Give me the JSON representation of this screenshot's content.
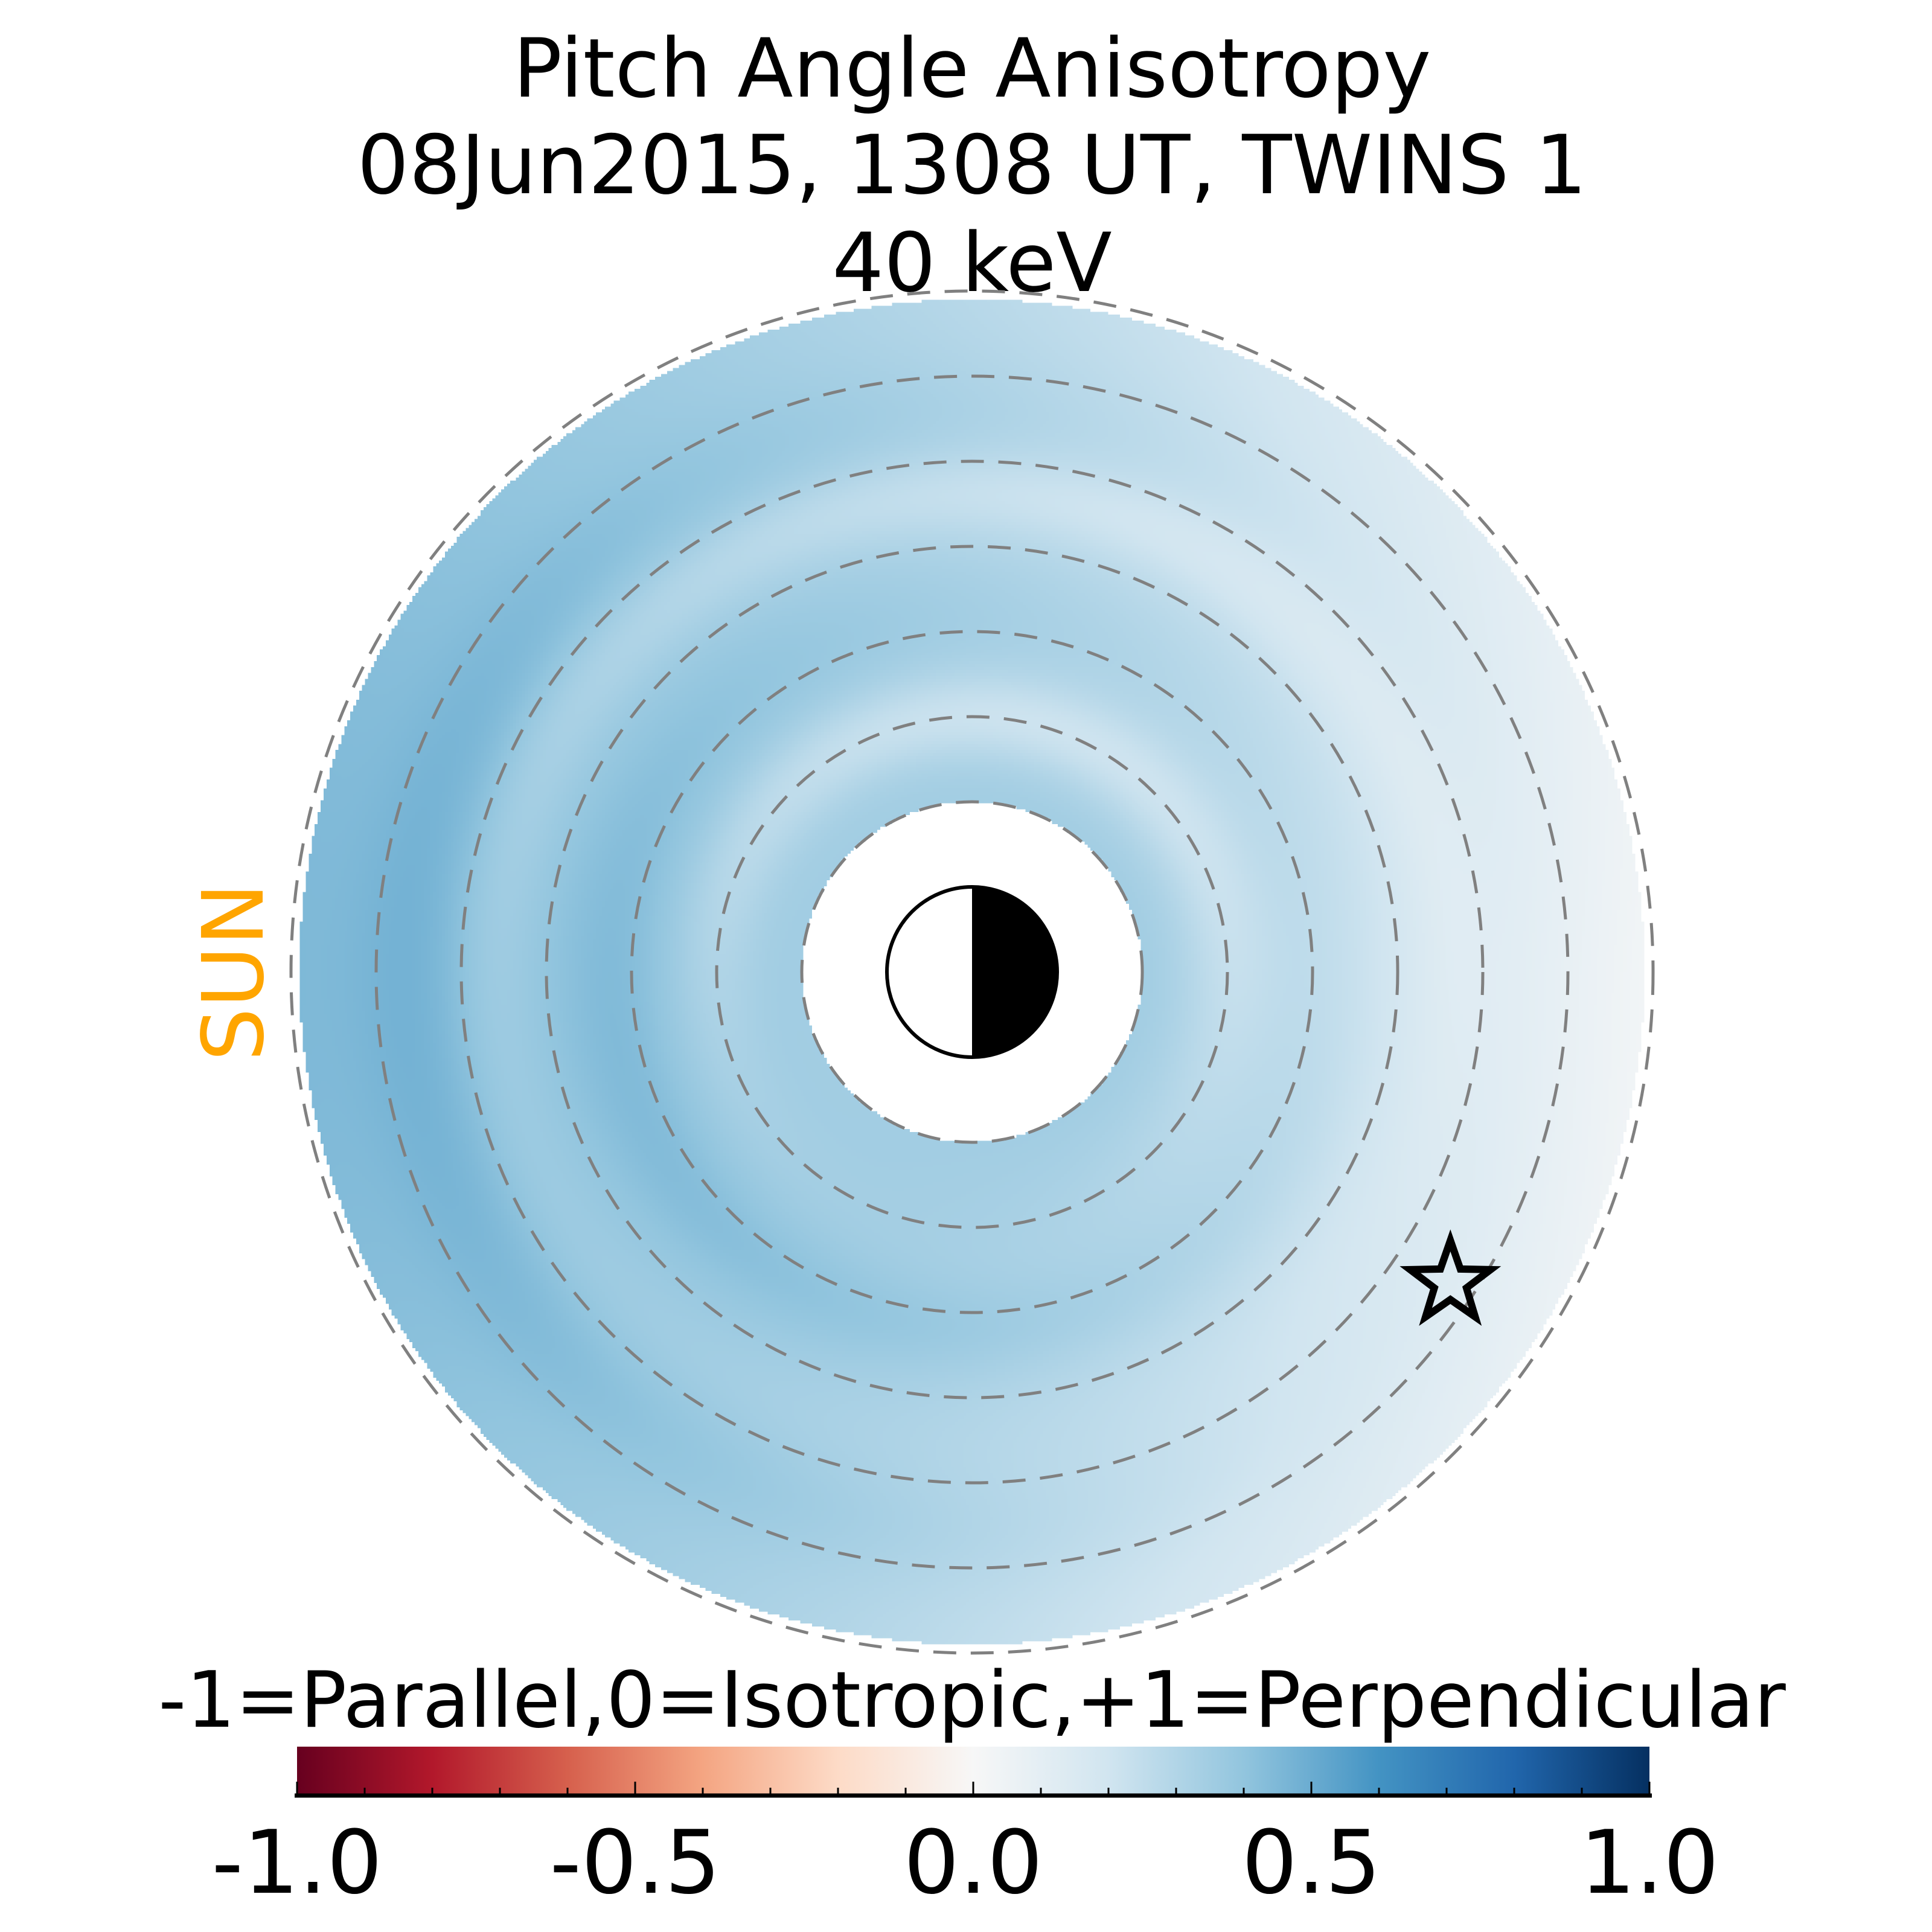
{
  "chart_data": {
    "type": "heatmap",
    "title_lines": [
      "Pitch Angle Anisotropy",
      "08Jun2015, 1308 UT,  TWINS 1",
      "40 keV"
    ],
    "sun_label": "SUN",
    "sun_color": "#FFA500",
    "colorbar": {
      "label": "-1=Parallel,0=Isotropic,+1=Perpendicular",
      "range": [
        -1.0,
        1.0
      ],
      "tick_labels": [
        "-1.0",
        "-0.5",
        "0.0",
        "0.5",
        "1.0"
      ],
      "tick_values": [
        -1.0,
        -0.5,
        0.0,
        0.5,
        1.0
      ],
      "minor_step": 0.1,
      "colormap": "RdBu",
      "stops": [
        "#67001f",
        "#b2182b",
        "#d6604d",
        "#f4a582",
        "#fddbc7",
        "#f7f7f7",
        "#d1e5f0",
        "#92c5de",
        "#4393c3",
        "#2166ac",
        "#053061"
      ]
    },
    "radial_circles_re": [
      2,
      3,
      4,
      5,
      6,
      7,
      8
    ],
    "data_range_re": [
      2,
      8
    ],
    "earth_radius_re": 1,
    "grid_color": "#808080",
    "anisotropy_summary": {
      "dusk_left_outer": 0.45,
      "dawn_right_outer": 0.05,
      "inner_ring": 0.35,
      "light_ring_re": 3
    },
    "marker": {
      "type": "star",
      "radius_re": 6.7,
      "angle_deg": -33
    }
  }
}
